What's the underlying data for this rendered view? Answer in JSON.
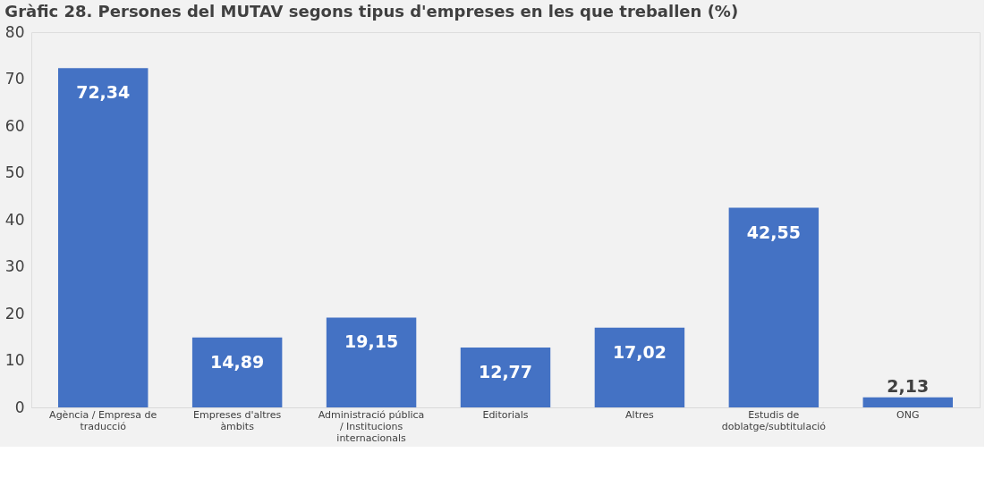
{
  "chart_data": {
    "type": "bar",
    "title": "Gràfic 28. Persones del MUTAV segons tipus d'empreses en les que treballen (%)",
    "categories": [
      "Agència / Empresa de traducció",
      "Empreses d'altres àmbits",
      "Administració pública / Institucions internacionals",
      "Editorials",
      "Altres",
      "Estudis de doblatge/subtitulació",
      "ONG"
    ],
    "values": [
      72.34,
      14.89,
      19.15,
      12.77,
      17.02,
      42.55,
      2.13
    ],
    "value_labels": [
      "72,34",
      "14,89",
      "19,15",
      "12,77",
      "17,02",
      "42,55",
      "2,13"
    ],
    "color": "#4472c4",
    "ylim": [
      0,
      80
    ],
    "yticks": [
      0,
      10,
      20,
      30,
      40,
      50,
      60,
      70,
      80
    ],
    "grid": false
  }
}
